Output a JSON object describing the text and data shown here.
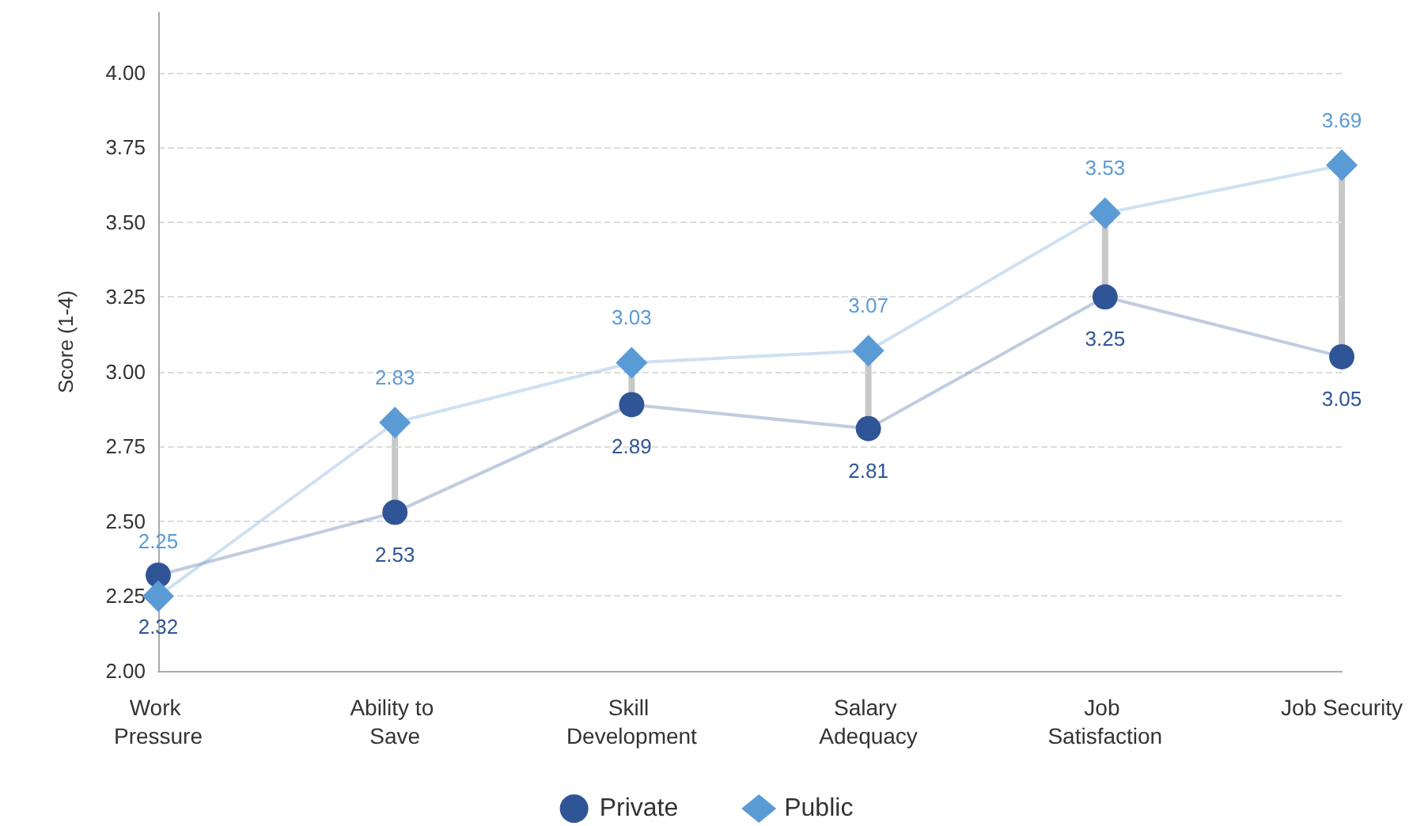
{
  "chart_data": {
    "type": "line",
    "ylabel": "Score (1-4)",
    "categories": [
      "Work Pressure",
      "Ability to Save",
      "Skill Development",
      "Salary Adequacy",
      "Job Satisfaction",
      "Job Security"
    ],
    "series": [
      {
        "name": "Private",
        "color": "#2f5597",
        "marker": "circle",
        "values": [
          2.32,
          2.53,
          2.89,
          2.81,
          3.25,
          3.05
        ]
      },
      {
        "name": "Public",
        "color": "#5b9bd5",
        "marker": "diamond",
        "values": [
          2.25,
          2.83,
          3.03,
          3.07,
          3.53,
          3.69
        ]
      }
    ],
    "ylim": [
      2,
      4.2
    ],
    "yticks": [
      {
        "value": 2,
        "label": "2.00"
      },
      {
        "value": 2.25,
        "label": "2.25"
      },
      {
        "value": 2.5,
        "label": "2.50"
      },
      {
        "value": 2.75,
        "label": "2.75"
      },
      {
        "value": 3,
        "label": "3.00"
      },
      {
        "value": 3.25,
        "label": "3.25"
      },
      {
        "value": 3.5,
        "label": "3.50"
      },
      {
        "value": 3.75,
        "label": "3.75"
      },
      {
        "value": 4,
        "label": "4.00"
      }
    ],
    "grid": "y",
    "legend": "bottom",
    "data_labels": true
  }
}
